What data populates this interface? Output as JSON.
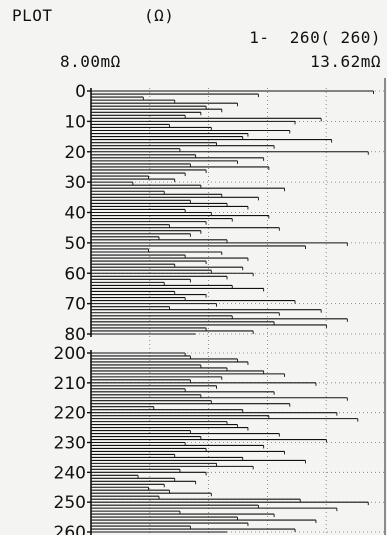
{
  "header": {
    "title": "PLOT",
    "unit": "(Ω)",
    "range": "1-  260( 260)",
    "x_min_label": "8.00mΩ",
    "x_max_label": "13.62mΩ"
  },
  "chart_data": {
    "type": "bar",
    "orientation": "horizontal",
    "x_min": 8.0,
    "x_max": 13.62,
    "x_unit": "mΩ",
    "y_ticks": [
      "0",
      "10",
      "20",
      "30",
      "40",
      "50",
      "60",
      "70",
      "80",
      "200",
      "210",
      "220",
      "230",
      "240",
      "250",
      "260"
    ],
    "grid": true,
    "segments": [
      {
        "label_start": 0,
        "label_end": 80,
        "values": [
          13.4,
          11.2,
          9.0,
          9.6,
          10.8,
          10.2,
          10.5,
          10.1,
          9.8,
          12.4,
          11.9,
          9.5,
          10.3,
          11.8,
          11.0,
          10.9,
          12.6,
          10.4,
          11.5,
          9.7,
          13.3,
          10.0,
          11.3,
          10.8,
          9.9,
          11.4,
          10.2,
          9.8,
          9.1,
          9.6,
          8.8,
          10.1,
          11.7,
          9.4,
          10.5,
          11.2,
          9.9,
          10.6,
          11.0,
          9.8,
          10.3,
          11.4,
          10.7,
          10.2,
          9.5,
          11.6,
          10.1,
          9.9,
          9.3,
          10.6,
          12.9,
          12.1,
          9.1,
          10.5,
          9.8,
          11.0,
          10.2,
          9.6,
          10.9,
          10.3,
          11.1,
          10.6,
          9.9,
          9.4,
          10.7,
          11.3,
          9.6,
          10.2,
          9.8,
          11.9,
          10.4,
          9.5,
          12.4,
          11.6,
          10.7,
          12.9,
          11.5,
          12.5,
          10.2,
          11.1,
          10.0
        ]
      },
      {
        "label_start": 200,
        "label_end": 260,
        "values": [
          9.8,
          9.9,
          10.8,
          11.0,
          10.1,
          10.6,
          11.3,
          11.7,
          10.5,
          9.9,
          12.3,
          10.4,
          9.8,
          11.5,
          10.1,
          12.9,
          10.3,
          11.8,
          9.2,
          10.9,
          12.7,
          11.4,
          13.1,
          10.6,
          10.8,
          11.0,
          9.9,
          11.6,
          10.1,
          12.5,
          9.8,
          11.3,
          10.2,
          11.7,
          9.6,
          10.9,
          12.1,
          10.4,
          11.1,
          9.7,
          10.2,
          8.9,
          9.6,
          10.0,
          9.4,
          9.1,
          9.5,
          10.3,
          9.3,
          12.0,
          13.3,
          11.2,
          12.7,
          9.7,
          11.5,
          10.8,
          12.3,
          11.0,
          9.9,
          11.9,
          10.6
        ]
      }
    ]
  }
}
